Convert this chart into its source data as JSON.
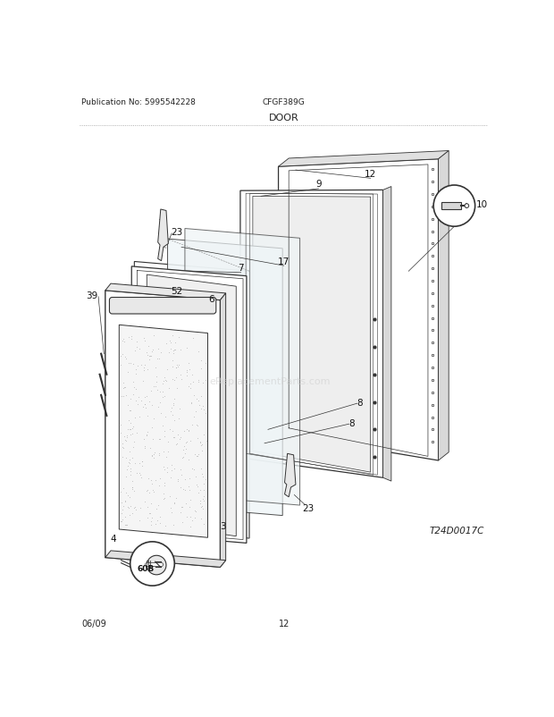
{
  "title_center": "DOOR",
  "pub_no": "Publication No: 5995542228",
  "model": "CFGF389G",
  "diagram_id": "T24D0017C",
  "footer_left": "06/09",
  "footer_center": "12",
  "background_color": "#ffffff",
  "line_color": "#333333",
  "text_color": "#222222",
  "watermark": "eReplacementParts.com"
}
